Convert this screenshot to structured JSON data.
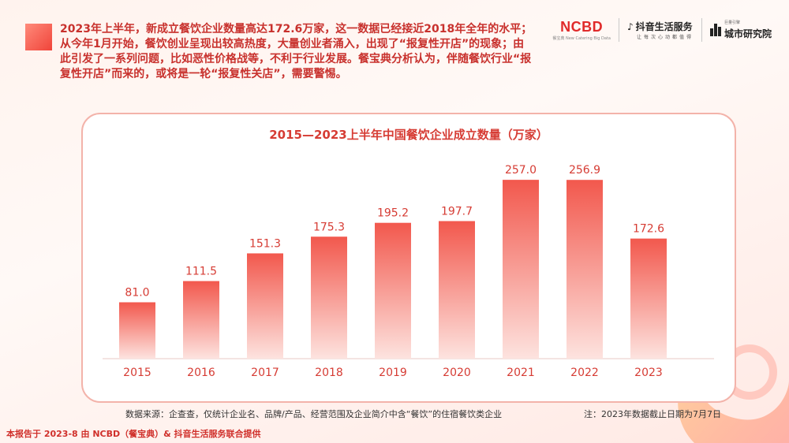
{
  "intro_text": "2023年上半年，新成立餐饮企业数量高达172.6万家，这一数据已经接近2018年全年的水平；从今年1月开始，餐饮创业呈现出较高热度，大量创业者涌入，出现了“报复性开店”的现象；由此引发了一系列问题，比如恶性价格战等，不利于行业发展。餐宝典分析认为，伴随餐饮行业“报复性开店”而来的，或将是一轮“报复性关店”，需要警惕。",
  "logos": {
    "ncbd": "NCBD",
    "ncbd_sub_cn": "餐宝典",
    "ncbd_sub_en": "New Catering Big Data",
    "douyin": "抖音生活服务",
    "douyin_sub": "让每次心动都值得",
    "city_small": "巨量引擎",
    "city": "城市研究院"
  },
  "colors": {
    "accent": "#e8433a",
    "title": "#d63c34",
    "bar_top": "#f2584d",
    "bar_bottom": "#fde3df"
  },
  "chart_data": {
    "type": "bar",
    "title": "2015—2023上半年中国餐饮企业成立数量（万家）",
    "categories": [
      "2015",
      "2016",
      "2017",
      "2018",
      "2019",
      "2020",
      "2021",
      "2022",
      "2023"
    ],
    "values": [
      81.0,
      111.5,
      151.3,
      175.3,
      195.2,
      197.7,
      257.0,
      256.9,
      172.6
    ],
    "value_labels": [
      "81.0",
      "111.5",
      "151.3",
      "175.3",
      "195.2",
      "197.7",
      "257.0",
      "256.9",
      "172.6"
    ],
    "ylim": [
      0,
      290
    ],
    "grid": false
  },
  "source_note": "数据来源：企查查，仅统计企业名、品牌/产品、经营范围及企业简介中含“餐饮”的住宿餐饮类企业",
  "date_note": "注：2023年数据截止日期为7月7日",
  "credit": "本报告于 2023-8 由 NCBD（餐宝典）& 抖音生活服务联合提供"
}
